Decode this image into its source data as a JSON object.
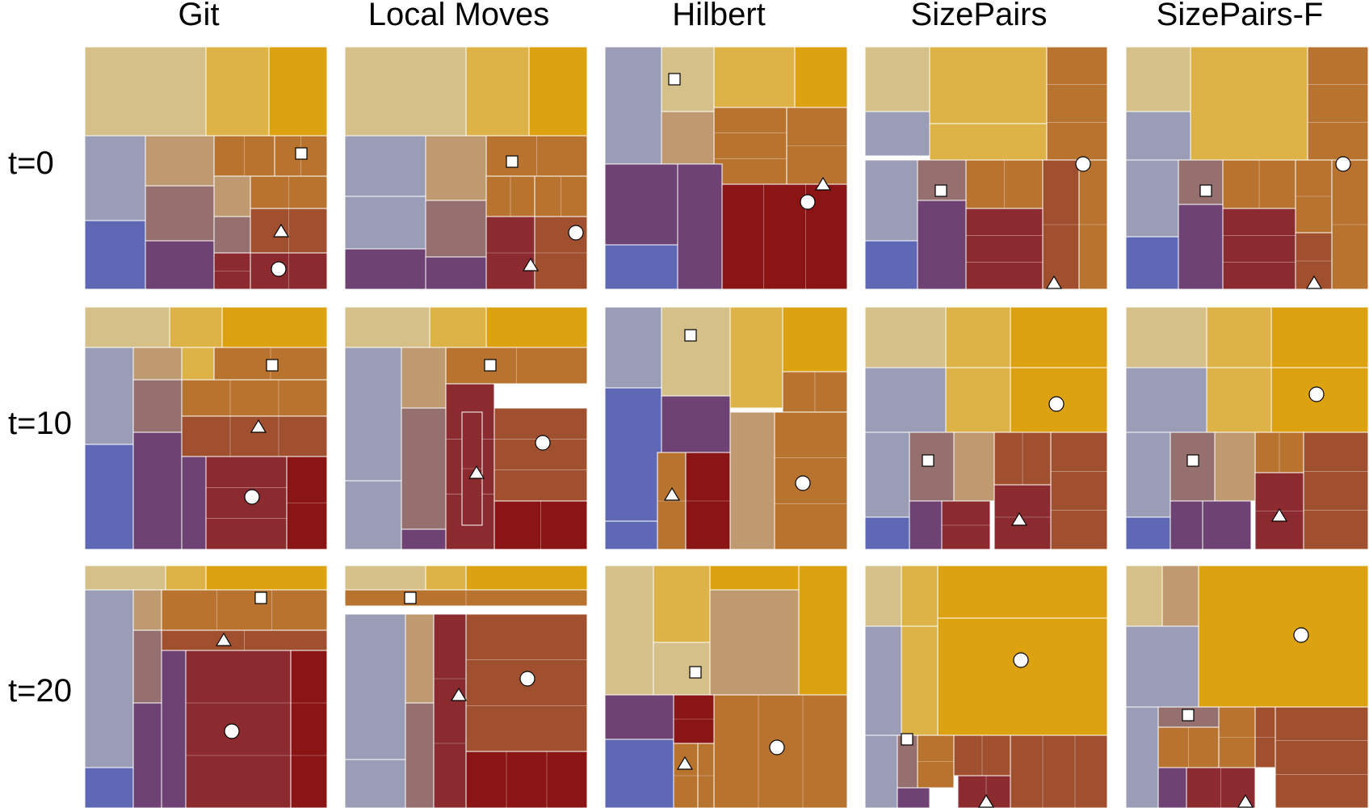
{
  "columns": [
    "Git",
    "Local Moves",
    "Hilbert",
    "SizePairs",
    "SizePairs-F"
  ],
  "rows": [
    "t=0",
    "t=10",
    "t=20"
  ],
  "markers": [
    "square",
    "triangle",
    "circle"
  ],
  "palette": {
    "sand": "#d6c08a",
    "gold": "#ddb347",
    "orange": "#dca210",
    "slate": "#9a9db5",
    "blue": "#5f68b4",
    "tan": "#bf9a70",
    "mauve": "#95706f",
    "plum": "#6e4272",
    "rust": "#b8732f",
    "brick": "#a0502e",
    "crimson": "#8b2a2f",
    "darkred": "#8b1414"
  }
}
